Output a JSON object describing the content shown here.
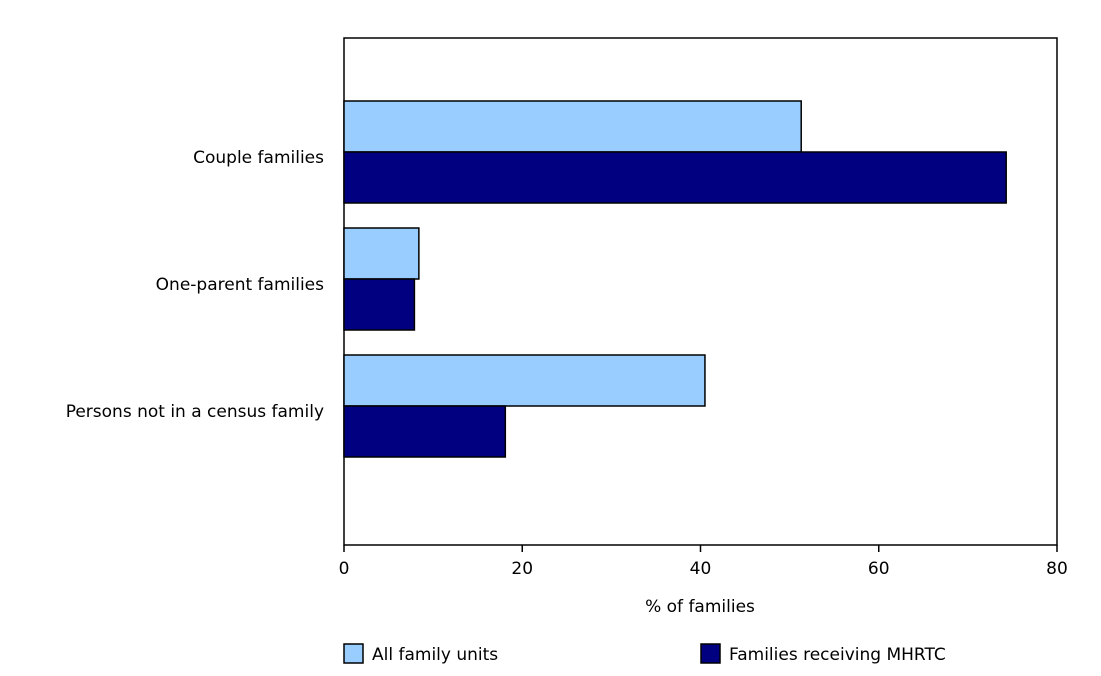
{
  "chart_data": {
    "type": "bar",
    "orientation": "horizontal",
    "categories": [
      "Couple families",
      "One-parent families",
      "Persons not in a census family"
    ],
    "series": [
      {
        "name": "All family units",
        "color": "#99ccff",
        "values": [
          51.3,
          8.4,
          40.5
        ]
      },
      {
        "name": "Families receiving MHRTC",
        "color": "#000080",
        "values": [
          74.3,
          7.9,
          18.1
        ]
      }
    ],
    "xlabel": "% of families",
    "xlim": [
      0,
      80
    ],
    "xticks": [
      0,
      20,
      40,
      60,
      80
    ],
    "grid": false,
    "legend": "bottom"
  }
}
